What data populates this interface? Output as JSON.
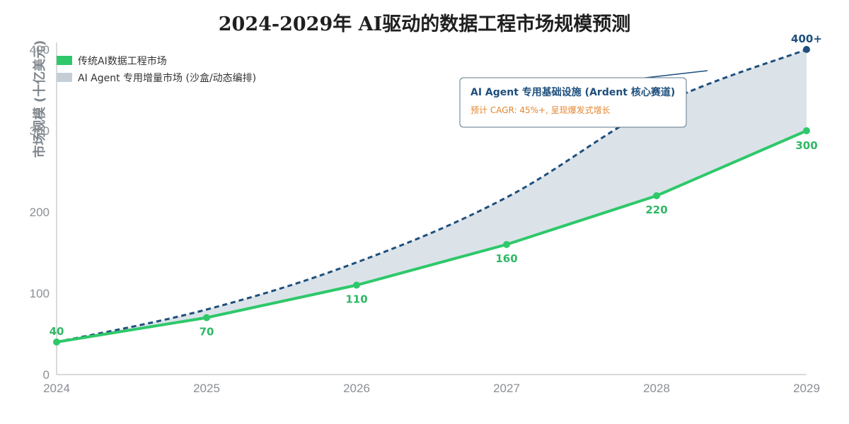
{
  "chart_data": {
    "type": "area",
    "title": "2024-2029年 AI驱动的数据工程市场规模预测",
    "xlabel": "",
    "ylabel": "市场规模 (十亿美元)",
    "x": [
      "2024",
      "2025",
      "2026",
      "2027",
      "2028",
      "2029"
    ],
    "ylim": [
      0,
      400
    ],
    "yticks": [
      "0",
      "100",
      "200",
      "300",
      "400"
    ],
    "grid": false,
    "legend_position": "top-left",
    "series": [
      {
        "name": "传统AI数据工程市场",
        "style": "solid-line-with-markers",
        "color": "#2ec86a",
        "values": [
          40,
          70,
          110,
          160,
          220,
          300
        ],
        "labels": [
          "40",
          "70",
          "110",
          "160",
          "220",
          "300"
        ]
      },
      {
        "name": "AI Agent 专用增量市场 (沙盒/动态编排)",
        "style": "dashed-line-filled-area",
        "color": "#1e4f7c",
        "fill_color": "#dbe3e9",
        "values": [
          40,
          80,
          138,
          218,
          330,
          400
        ],
        "end_label": "400+"
      }
    ],
    "annotation": {
      "title": "AI Agent 专用基础设施 (Ardent 核心赛道)",
      "subtitle": "预计 CAGR: 45%+, 呈现爆发式增长",
      "points_to_x": "2028",
      "points_to_y": 370
    }
  }
}
